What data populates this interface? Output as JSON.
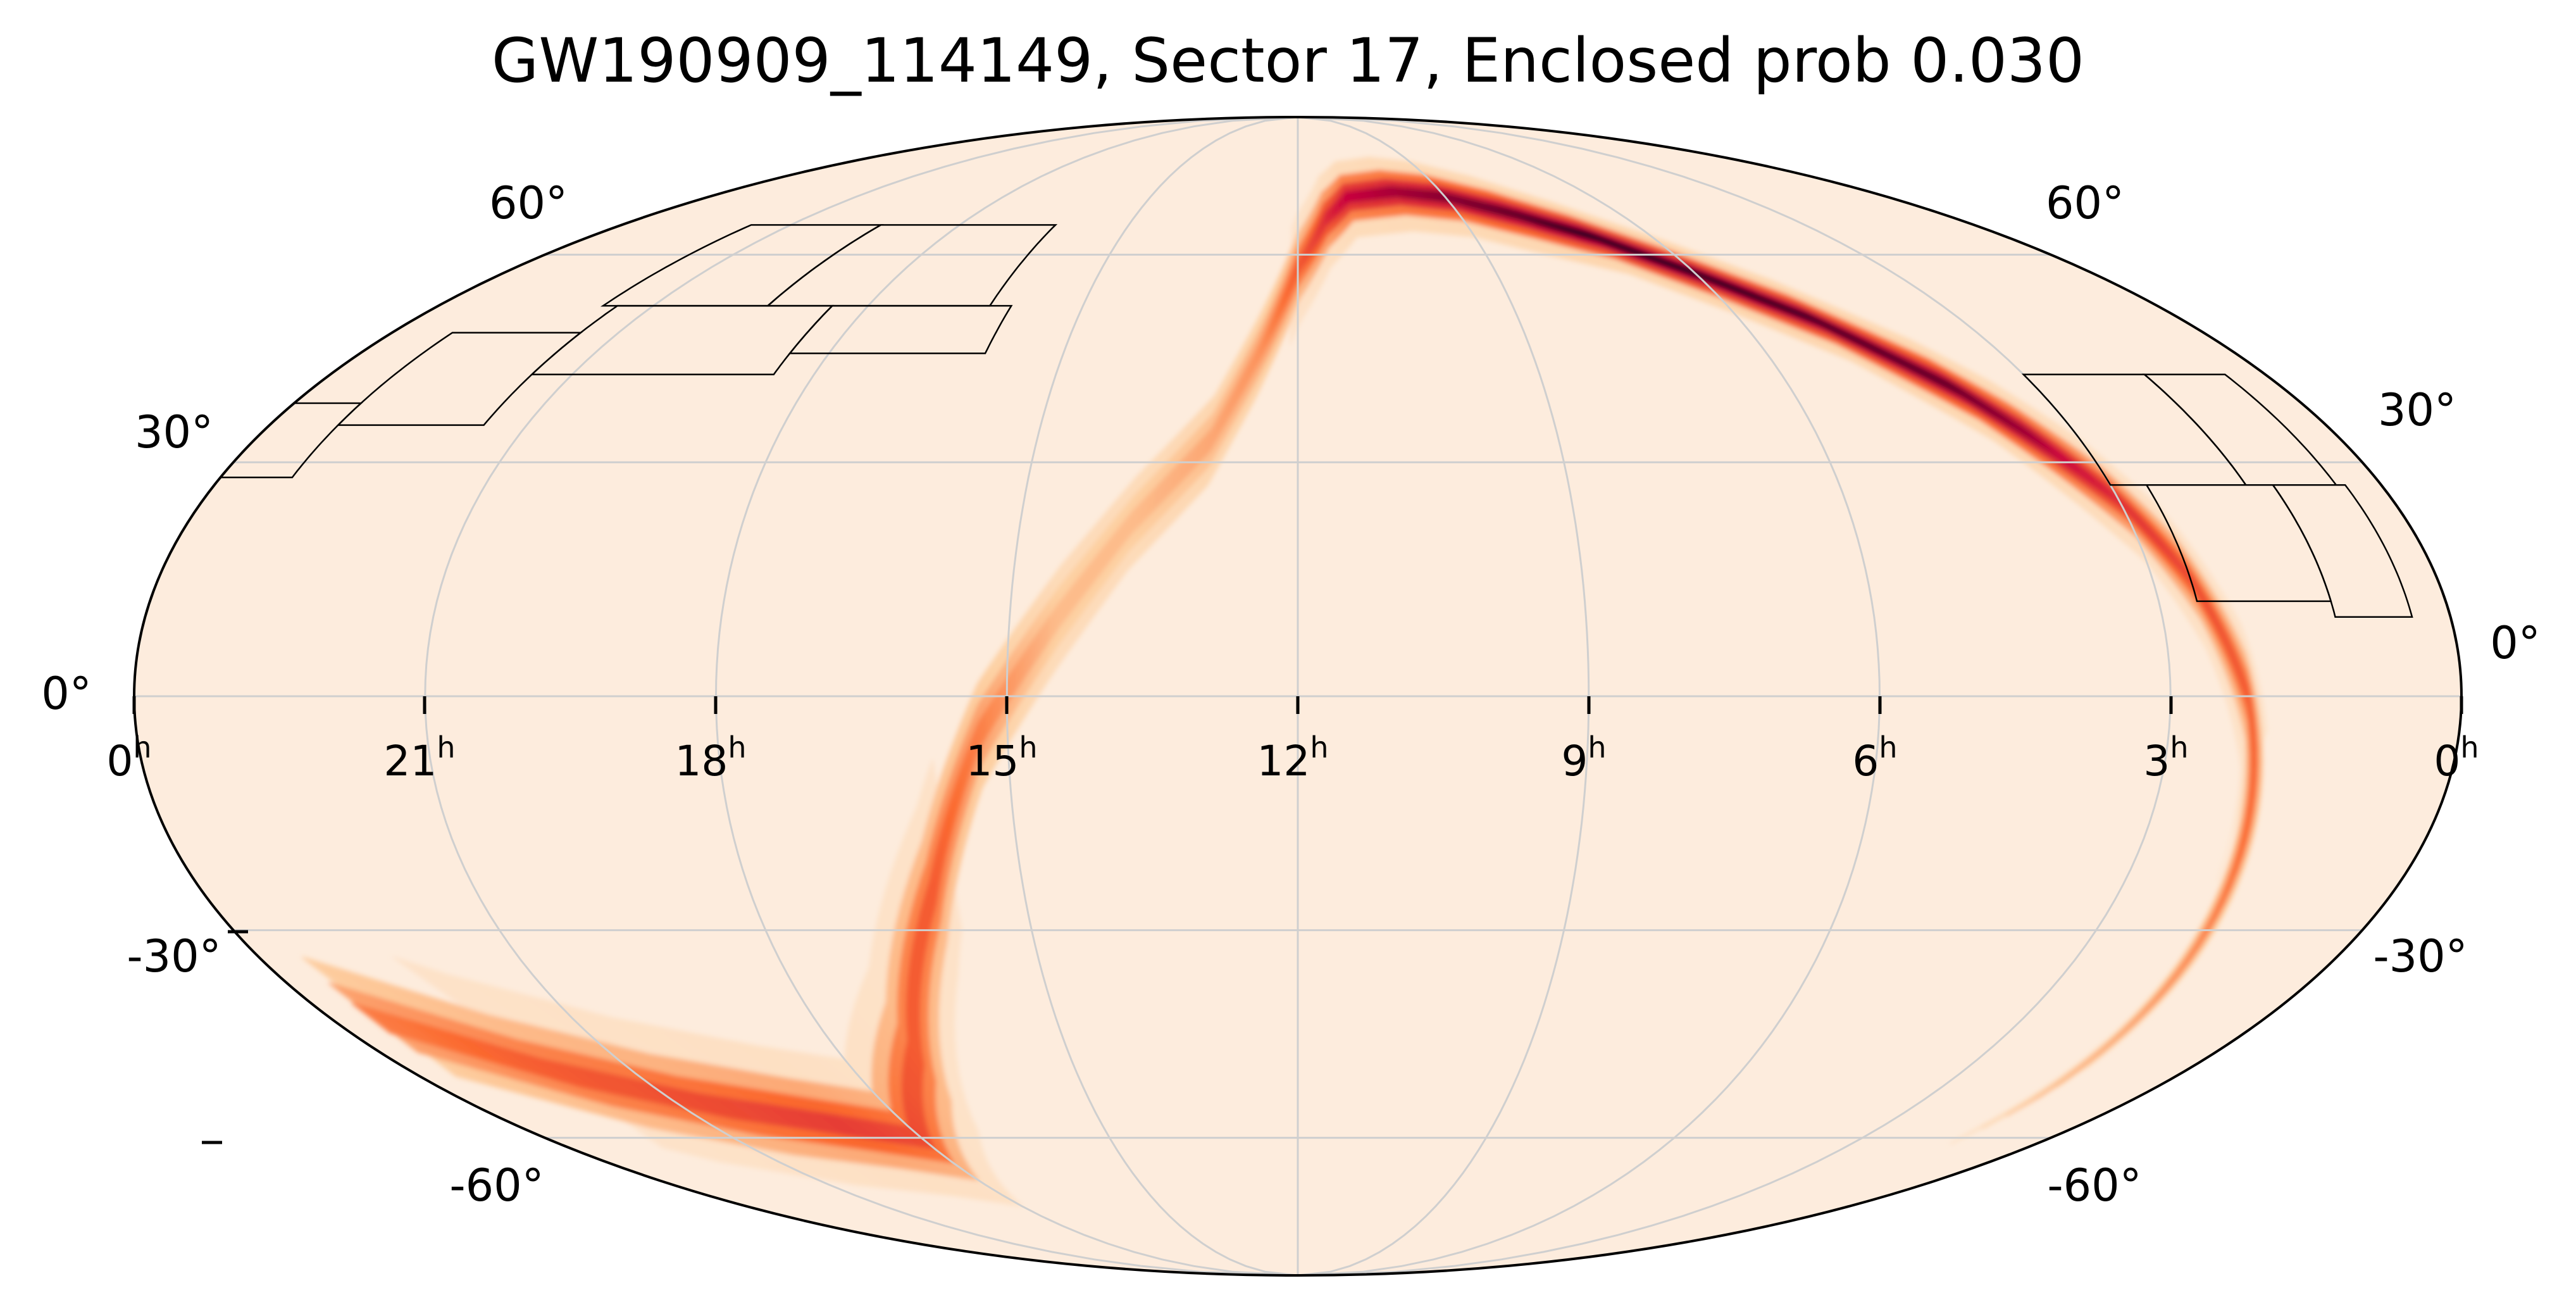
{
  "title": "GW190909_114149, Sector 17, Enclosed prob 0.030",
  "projection": "mollweide",
  "colors": {
    "background": "#fdecdd",
    "low": "#fdecdd",
    "mid": "#fb6a2f",
    "high": "#c9003d",
    "peak": "#2b0020",
    "graticule": "#cfcfcf",
    "outline": "#000000",
    "footprint": "#000000"
  },
  "ra_axis_labels": [
    {
      "text": "0",
      "sup": "h"
    },
    {
      "text": "21",
      "sup": "h"
    },
    {
      "text": "18",
      "sup": "h"
    },
    {
      "text": "15",
      "sup": "h"
    },
    {
      "text": "12",
      "sup": "h"
    },
    {
      "text": "9",
      "sup": "h"
    },
    {
      "text": "6",
      "sup": "h"
    },
    {
      "text": "3",
      "sup": "h"
    },
    {
      "text": "0",
      "sup": "h"
    }
  ],
  "dec_axis_labels": {
    "left": [
      "60°",
      "30°",
      "0°",
      "-30°",
      "-60°"
    ],
    "right": [
      "60°",
      "30°",
      "0°",
      "-30°",
      "-60°"
    ]
  },
  "probability_band": {
    "ridge_ra_hours": [
      23.5,
      22,
      20.5,
      19,
      18,
      17,
      16,
      15.3,
      14.5,
      13.8,
      13,
      12.5,
      12,
      11.5,
      11,
      10,
      9,
      8,
      7,
      6,
      5,
      4,
      3.5,
      3,
      2.6,
      2.2,
      1.9,
      1.6,
      1.4
    ],
    "ridge_dec_deg": [
      -42,
      -50,
      -55,
      -58,
      -60,
      -47,
      -25,
      -5,
      10,
      22,
      33,
      45,
      58,
      66,
      70,
      71,
      70,
      67,
      63,
      57,
      50,
      40,
      33,
      25,
      15,
      0,
      -20,
      -40,
      -55
    ],
    "ridge_intensity": [
      0.35,
      0.45,
      0.5,
      0.55,
      0.5,
      0.45,
      0.45,
      0.35,
      0.2,
      0.2,
      0.25,
      0.3,
      0.45,
      0.6,
      0.75,
      0.8,
      0.85,
      0.9,
      1.0,
      1.0,
      0.95,
      0.9,
      0.8,
      0.6,
      0.5,
      0.45,
      0.4,
      0.3,
      0.2
    ],
    "width_deg": [
      14,
      14,
      13,
      12,
      12,
      12,
      11,
      11,
      11,
      10,
      10,
      10,
      9,
      8,
      7,
      7,
      7,
      7,
      6,
      6,
      6,
      7,
      8,
      8,
      9,
      9,
      10,
      10,
      10
    ]
  },
  "tess_sector_tiles": [
    {
      "ra_hours": [
        16.3,
        19.4
      ],
      "dec_deg": [
        52,
        65
      ]
    },
    {
      "ra_hours": [
        19.4,
        21.7
      ],
      "dec_deg": [
        52,
        65
      ]
    },
    {
      "ra_hours": [
        16.0,
        18.5
      ],
      "dec_deg": [
        45,
        52
      ]
    },
    {
      "ra_hours": [
        18.5,
        21.5
      ],
      "dec_deg": [
        42,
        52
      ]
    },
    {
      "ra_hours": [
        21.5,
        23.2
      ],
      "dec_deg": [
        35,
        48
      ]
    },
    {
      "ra_hours": [
        23.2,
        24.0
      ],
      "dec_deg": [
        28,
        38
      ]
    },
    {
      "ra_hours": [
        1.5,
        3.0
      ],
      "dec_deg": [
        27,
        42
      ]
    },
    {
      "ra_hours": [
        0.5,
        1.5
      ],
      "dec_deg": [
        27,
        42
      ]
    },
    {
      "ra_hours": [
        1.2,
        2.6
      ],
      "dec_deg": [
        12,
        27
      ]
    },
    {
      "ra_hours": [
        0.4,
        1.2
      ],
      "dec_deg": [
        10,
        27
      ]
    }
  ]
}
